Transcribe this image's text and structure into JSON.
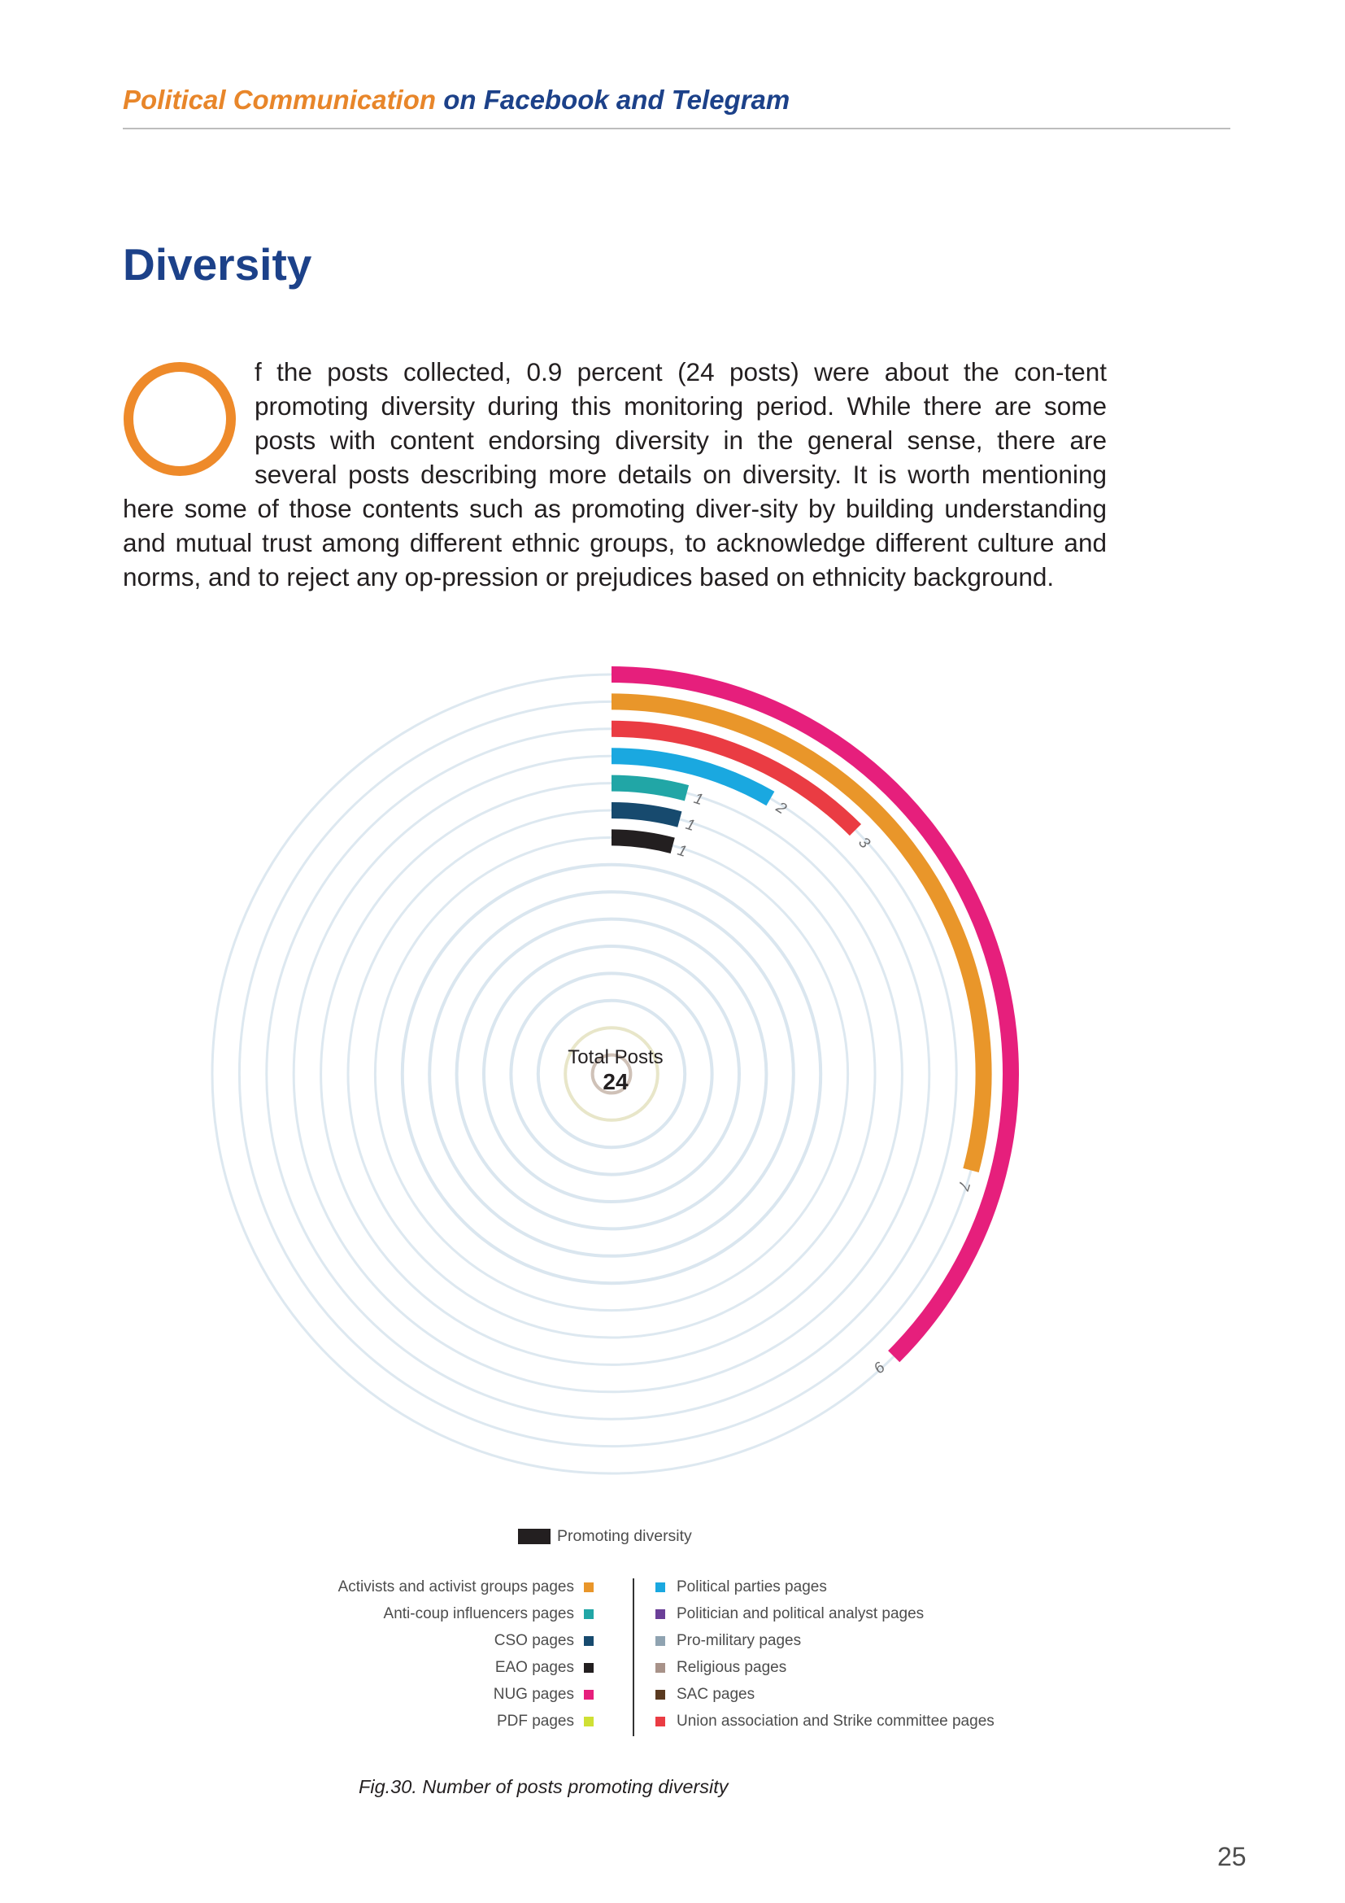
{
  "header": {
    "title_part1": "Political Communication",
    "title_part2": " on Facebook and Telegram"
  },
  "section_title": "Diversity",
  "paragraph": "f the posts collected, 0.9 percent (24 posts) were about the con-tent promoting diversity during this monitoring period. While there are some posts with content endorsing diversity in the general sense, there are several posts describing more details on diversity. It is worth mentioning here some of those contents such as promoting diver-sity by building understanding and mutual trust among different ethnic groups, to acknowledge different culture and norms, and to reject any op-pression or prejudices based on ethnicity background.",
  "chart_data": {
    "type": "radial-bar",
    "center_label": "Total Posts",
    "total": "24",
    "max_value": 24,
    "series_name": "Promoting diversity",
    "bars": [
      {
        "category": "NUG pages",
        "value": 9,
        "color": "#e61f7c"
      },
      {
        "category": "Activists and activist groups pages",
        "value": 7,
        "color": "#e9962a"
      },
      {
        "category": "Union association and Strike committee pages",
        "value": 3,
        "color": "#ea3c43"
      },
      {
        "category": "Political parties pages",
        "value": 2,
        "color": "#1aa8e0"
      },
      {
        "category": "Anti-coup influencers pages",
        "value": 1,
        "color": "#21a6a6"
      },
      {
        "category": "CSO pages",
        "value": 1,
        "color": "#174a6e"
      },
      {
        "category": "EAO pages",
        "value": 1,
        "color": "#231f20"
      }
    ],
    "empty_track_colors": [
      "#dae6ef",
      "#dae6ef",
      "#dae6ef",
      "#dae6ef",
      "#dae6ef",
      "#dae6ef",
      "#e8e6c9",
      "#cfc1b7",
      "#cdc3e6",
      "#d5e3ee",
      "#d4d7db"
    ]
  },
  "legend": {
    "series_label": "Promoting diversity",
    "left": [
      {
        "label": "Activists and activist groups pages",
        "color": "#e9962a"
      },
      {
        "label": "Anti-coup influencers pages",
        "color": "#21a6a6"
      },
      {
        "label": "CSO pages",
        "color": "#174a6e"
      },
      {
        "label": "EAO pages",
        "color": "#231f20"
      },
      {
        "label": "NUG pages",
        "color": "#e61f7c"
      },
      {
        "label": "PDF pages",
        "color": "#cfe034"
      }
    ],
    "right": [
      {
        "label": "Political parties pages",
        "color": "#1aa8e0"
      },
      {
        "label": "Politician and political analyst pages",
        "color": "#6b3f98"
      },
      {
        "label": "Pro-military pages",
        "color": "#8fa3b1"
      },
      {
        "label": "Religious pages",
        "color": "#a89289"
      },
      {
        "label": "SAC pages",
        "color": "#5a3a20"
      },
      {
        "label": "Union association and Strike committee pages",
        "color": "#ea3c43"
      }
    ]
  },
  "caption": "Fig.30. Number of posts promoting diversity",
  "page_number": "25"
}
